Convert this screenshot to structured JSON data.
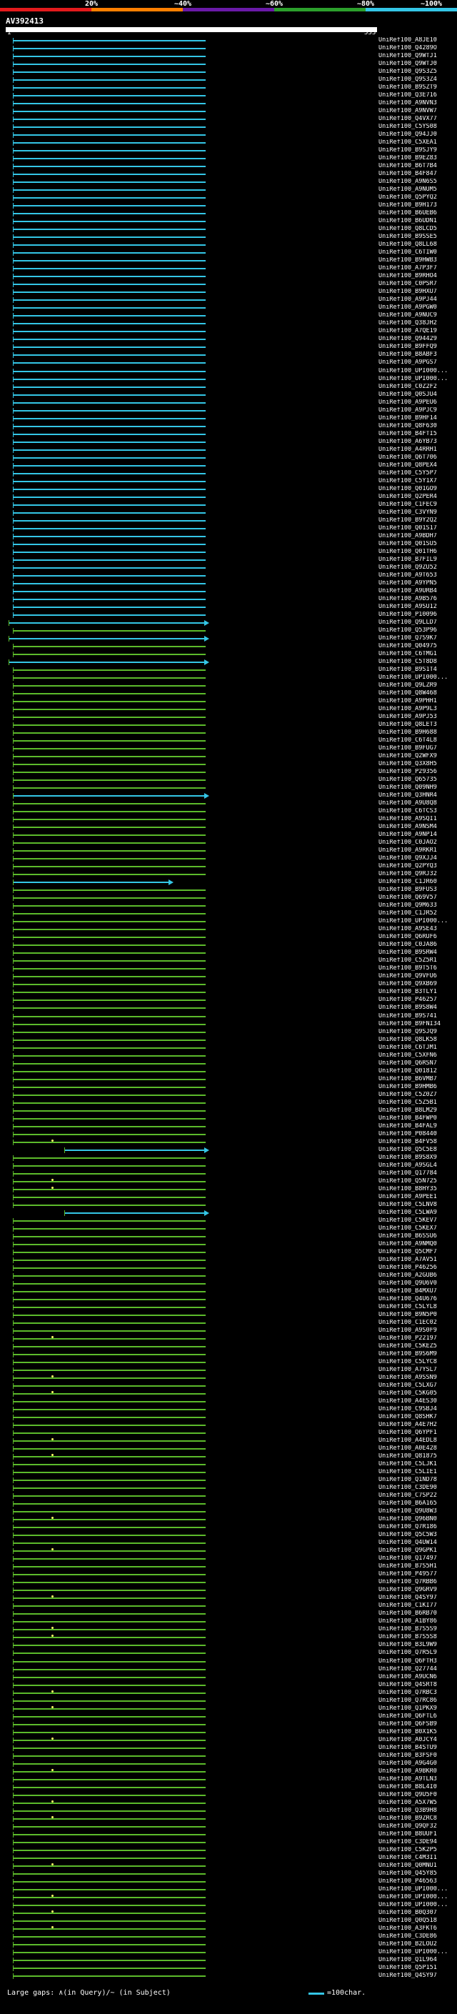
{
  "scale": {
    "ticks": [
      "20%",
      "~40%",
      "~60%",
      "~80%",
      "~100%"
    ],
    "colors": [
      "#e31a1c",
      "#ff7f00",
      "#6a1aa8",
      "#2ca02c",
      "#34c6e6"
    ]
  },
  "query": {
    "title": "AV392413",
    "start": "1",
    "end": "533"
  },
  "colors": {
    "high": "#34c6e6",
    "mid": "#5cba2b",
    "dot": "#ffff66"
  },
  "hits": [
    "UniRef100_A8JE10",
    "UniRef100_Q4289O",
    "UniRef100_Q9WTJ1",
    "UniRef100_Q9WTJ0",
    "UniRef100_Q9S3Z5",
    "UniRef100_Q9S3Z4",
    "UniRef100_B9SZT9",
    "UniRef100_Q3E716",
    "UniRef100_A9NVN3",
    "UniRef100_A9NVW7",
    "UniRef100_Q4VX77",
    "UniRef100_C5YS08",
    "UniRef100_Q94JJ0",
    "UniRef100_C5XEA1",
    "UniRef100_B9SJY9",
    "UniRef100_B9EZ83",
    "UniRef100_B6T7B4",
    "UniRef100_B4F847",
    "UniRef100_A9N6S5",
    "UniRef100_A9NUM5",
    "UniRef100_Q5PYQ2",
    "UniRef100_B9H173",
    "UniRef100_B6UEB6",
    "UniRef100_B6UDN1",
    "UniRef100_Q8LCD5",
    "UniRef100_B9SSE5",
    "UniRef100_Q8LL68",
    "UniRef100_C6TIW0",
    "UniRef100_B9HWB3",
    "UniRef100_A7P3F7",
    "UniRef100_B9RHO4",
    "UniRef100_C0PSR7",
    "UniRef100_B9HXU7",
    "UniRef100_A9PJ44",
    "UniRef100_A9PGW0",
    "UniRef100_A9NUC9",
    "UniRef100_Q38JH2",
    "UniRef100_A7QE19",
    "UniRef100_Q94429",
    "UniRef100_B9FFQ9",
    "UniRef100_B8ABF3",
    "UniRef100_A9PGS7",
    "UniRef100_UPI000...",
    "UniRef100_UPI000...",
    "UniRef100_C0Z2F2",
    "UniRef100_Q0SJU4",
    "UniRef100_A9PEU6",
    "UniRef100_A9PJC9",
    "UniRef100_B9HF14",
    "UniRef100_Q8F630",
    "UniRef100_B4FTI5",
    "UniRef100_A6YB73",
    "UniRef100_A4RRH1",
    "UniRef100_Q6T706",
    "UniRef100_Q8PEX4",
    "UniRef100_C5Y5P7",
    "UniRef100_C5Y1X7",
    "UniRef100_Q01GO9",
    "UniRef100_Q2PER4",
    "UniRef100_C1FEC9",
    "UniRef100_C3VYN9",
    "UniRef100_B9Y2Q2",
    "UniRef100_Q01S17",
    "UniRef100_A9BDH7",
    "UniRef100_Q01SU5",
    "UniRef100_Q01TH6",
    "UniRef100_B7FIL9",
    "UniRef100_Q9ZU52",
    "UniRef100_A9T653",
    "UniRef100_A9YPN5",
    "UniRef100_A9URB4",
    "UniRef100_A9B576",
    "UniRef100_A9SU12",
    "UniRef100_P10096",
    "UniRef100_Q9LLD7",
    "UniRef100_Q53P96",
    "UniRef100_Q7S9K7",
    "UniRef100_Q04975",
    "UniRef100_C6TMG1",
    "UniRef100_C5T8D8",
    "UniRef100_B9S1T4",
    "UniRef100_UPI000...",
    "UniRef100_Q9LZR9",
    "UniRef100_Q8W468",
    "UniRef100_A9PHH1",
    "UniRef100_A9P9L3",
    "UniRef100_A9PJ53",
    "UniRef100_Q8LET3",
    "UniRef100_B9H688",
    "UniRef100_C6T4L8",
    "UniRef100_B9FUG7",
    "UniRef100_Q2WFX9",
    "UniRef100_Q3X8H5",
    "UniRef100_P29356",
    "UniRef100_Q65735",
    "UniRef100_Q09NH9",
    "UniRef100_Q3HNR4",
    "UniRef100_A9U8Q8",
    "UniRef100_C6TCS3",
    "UniRef100_A9SQI1",
    "UniRef100_A9NSM4",
    "UniRef100_A9NP14",
    "UniRef100_C0JAO2",
    "UniRef100_A9RKR1",
    "UniRef100_Q9XJJ4",
    "UniRef100_Q2PYQ3",
    "UniRef100_Q9RJ32",
    "UniRef100_C1JR60",
    "UniRef100_B9FUS3",
    "UniRef100_Q69V57",
    "UniRef100_Q9M633",
    "UniRef100_C1JR52",
    "UniRef100_UPI000...",
    "UniRef100_A9SE43",
    "UniRef100_Q6RUF6",
    "UniRef100_C0JA86",
    "UniRef100_B9SRW4",
    "UniRef100_C5Z5R1",
    "UniRef100_B9T5T6",
    "UniRef100_Q9VFU6",
    "UniRef100_Q9XB69",
    "UniRef100_B3TLY1",
    "UniRef100_P46257",
    "UniRef100_B9S8W4",
    "UniRef100_B9S741",
    "UniRef100_B9FNI34",
    "UniRef100_Q9SJQ9",
    "UniRef100_Q8LK58",
    "UniRef100_C6TJM1",
    "UniRef100_C5XFN6",
    "UniRef100_Q6RSN7",
    "UniRef100_Q01812",
    "UniRef100_B6VMB7",
    "UniRef100_B9HMB6",
    "UniRef100_C5Z0Z7",
    "UniRef100_C5Z5B1",
    "UniRef100_B8LM29",
    "UniRef100_B4FWP0",
    "UniRef100_B4FAL9",
    "UniRef100_P08440",
    "UniRef100_B4FV58",
    "UniRef100_Q5C5E8",
    "UniRef100_B9S8X9",
    "UniRef100_A9SGL4",
    "UniRef100_Q17784",
    "UniRef100_Q5N725",
    "UniRef100_B8HY35",
    "UniRef100_A9PEE1",
    "UniRef100_C5LNV8",
    "UniRef100_C5LWA9",
    "UniRef100_C5KEV7",
    "UniRef100_C5KEX7",
    "UniRef100_B6SSU6",
    "UniRef100_A9NMQ0",
    "UniRef100_Q5CMF7",
    "UniRef100_A7AV51",
    "UniRef100_P46256",
    "UniRef100_A2GUB6",
    "UniRef100_Q9U6V0",
    "UniRef100_B4MXU7",
    "UniRef100_Q4U676",
    "UniRef100_C5LYL8",
    "UniRef100_B9N5P0",
    "UniRef100_C1EC02",
    "UniRef100_A9S0F9",
    "UniRef100_P22197",
    "UniRef100_C5KEZ5",
    "UniRef100_B9S6M9",
    "UniRef100_C5LYC8",
    "UniRef100_A7YSL7",
    "UniRef100_A9SSN9",
    "UniRef100_C5LXG7",
    "UniRef100_C5KG05",
    "UniRef100_A4ES30",
    "UniRef100_C9SBJ4",
    "UniRef100_Q8SHK7",
    "UniRef100_A4E7H2",
    "UniRef100_Q6YPF1",
    "UniRef100_A4EDL8",
    "UniRef100_A0E428",
    "UniRef100_Q81875",
    "UniRef100_C5LJK1",
    "UniRef100_C5LIE1",
    "UniRef100_Q1ND78",
    "UniRef100_C3DE90",
    "UniRef100_C7SP22",
    "UniRef100_B6A165",
    "UniRef100_Q9U8W3",
    "UniRef100_Q96BN0",
    "UniRef100_Q7R186",
    "UniRef100_Q5C5W3",
    "UniRef100_Q4UW14",
    "UniRef100_Q9GPK1",
    "UniRef100_Q17497",
    "UniRef100_B7S5H1",
    "UniRef100_P49577",
    "UniRef100_Q7RBB6",
    "UniRef100_Q9GRV9",
    "UniRef100_Q4SY97",
    "UniRef100_C1KI77",
    "UniRef100_B6RB70",
    "UniRef100_A1BY86",
    "UniRef100_B7S5S9",
    "UniRef100_B7S5S8",
    "UniRef100_B3L9W9",
    "UniRef100_Q7R5L9",
    "UniRef100_Q6FTH3",
    "UniRef100_Q27744",
    "UniRef100_A9UCN6",
    "UniRef100_Q4SRT8",
    "UniRef100_Q7RBC3",
    "UniRef100_Q7RC86",
    "UniRef100_Q1PKX9",
    "UniRef100_Q6FTL6",
    "UniRef100_Q6FSB9",
    "UniRef100_B0X1K5",
    "UniRef100_A0JCY4",
    "UniRef100_B4STU9",
    "UniRef100_B3FSF0",
    "UniRef100_A9G4G0",
    "UniRef100_A9BKR0",
    "UniRef100_A9TLN3",
    "UniRef100_B8L4I0",
    "UniRef100_Q9U5F0",
    "UniRef100_A5X7W5",
    "UniRef100_Q3B9H8",
    "UniRef100_B9ZRC8",
    "UniRef100_Q9QF32",
    "UniRef100_B8UUF1",
    "UniRef100_C3DE94",
    "UniRef100_C5K2P5",
    "UniRef100_C4M3I1",
    "UniRef100_Q0MNU1",
    "UniRef100_Q45Y85",
    "UniRef100_P46563",
    "UniRef100_UPI000...",
    "UniRef100_UPI000...",
    "UniRef100_UPI000...",
    "UniRef100_B0Q307",
    "UniRef100_Q0Q518",
    "UniRef100_A3FKT6",
    "UniRef100_C3DE86",
    "UniRef100_B2LOU2",
    "UniRef100_UPI000...",
    "UniRef100_Q1L964",
    "UniRef100_Q5P151",
    "UniRef100_Q4SY97"
  ],
  "legend": {
    "gaps_text": "Large gaps: ∧(in Query)/~ (in Subject)",
    "scale_text": "=100char."
  }
}
